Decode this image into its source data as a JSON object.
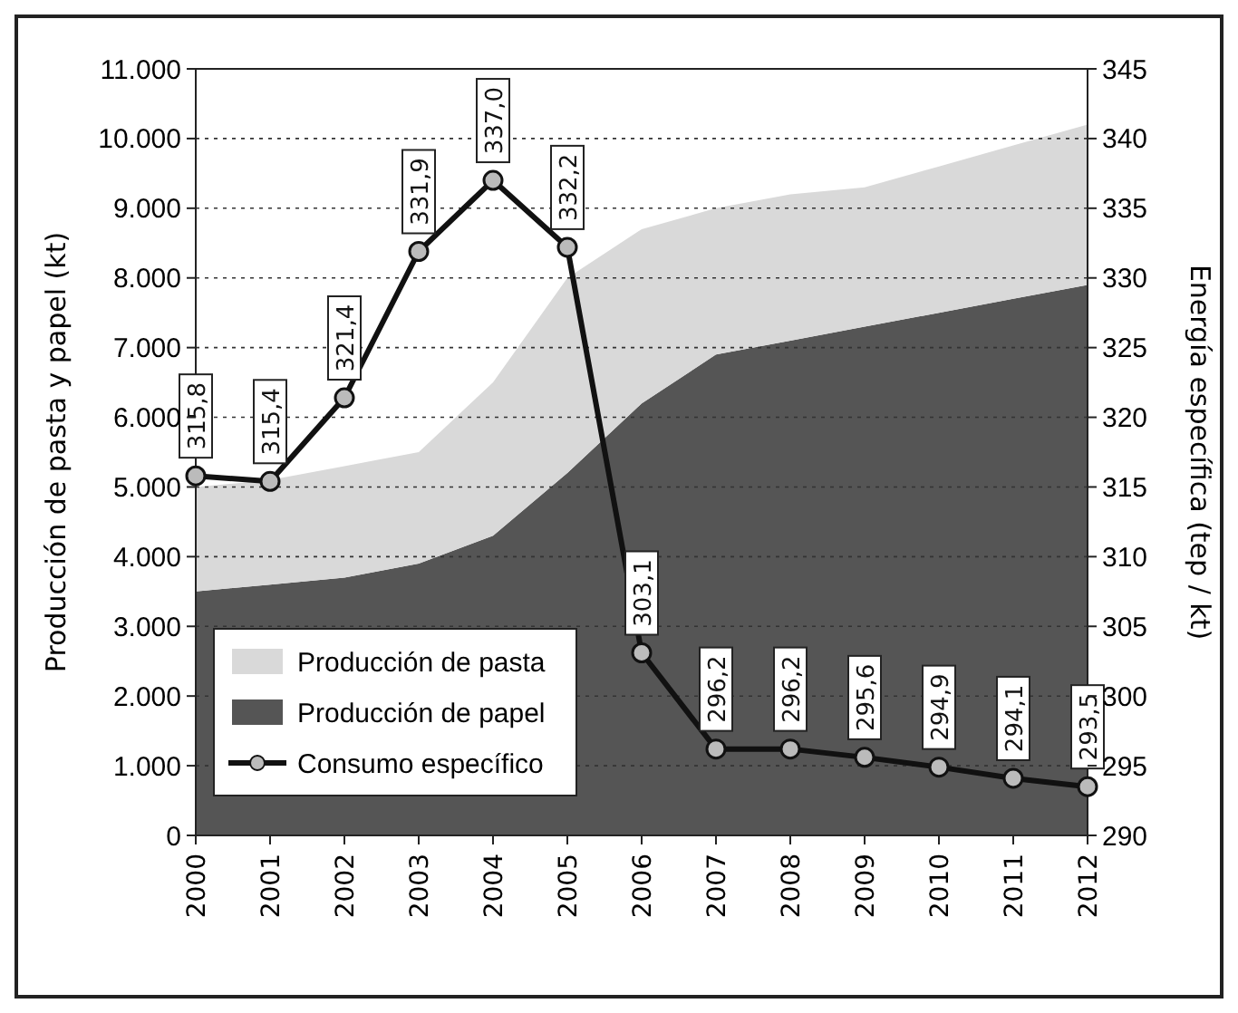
{
  "chart_data": {
    "type": "area",
    "stacked": true,
    "categories": [
      "2000",
      "2001",
      "2002",
      "2003",
      "2004",
      "2005",
      "2006",
      "2007",
      "2008",
      "2009",
      "2010",
      "2011",
      "2012"
    ],
    "series": [
      {
        "name": "Producción de papel",
        "color": "#555555",
        "values": [
          3500,
          3600,
          3700,
          3900,
          4300,
          5200,
          6200,
          6900,
          7100,
          7300,
          7500,
          7700,
          7900
        ]
      },
      {
        "name": "Producción de pasta",
        "color": "#d9d9d9",
        "values": [
          1500,
          1500,
          1600,
          1600,
          2200,
          2800,
          2500,
          2100,
          2100,
          2000,
          2100,
          2200,
          2300
        ]
      },
      {
        "name": "Consumo específico",
        "type": "line",
        "axis": "y2",
        "color": "#111111",
        "marker": "circle",
        "data_labels": true,
        "values": [
          315.8,
          315.4,
          321.4,
          331.9,
          337.0,
          332.2,
          303.1,
          296.2,
          296.2,
          295.6,
          294.9,
          294.1,
          293.5
        ],
        "value_labels": [
          "315,8",
          "315,4",
          "321,4",
          "331,9",
          "337,0",
          "332,2",
          "303,1",
          "296,2",
          "296,2",
          "295,6",
          "294,9",
          "294,1",
          "293,5"
        ]
      }
    ],
    "ylabel": "Producción de pasta y papel (kt)",
    "y2label": "Energía específica (tep / kt)",
    "ylim": [
      0,
      11000
    ],
    "yticks": [
      {
        "value": 0,
        "label": "0"
      },
      {
        "value": 1000,
        "label": "1.000"
      },
      {
        "value": 2000,
        "label": "2.000"
      },
      {
        "value": 3000,
        "label": "3.000"
      },
      {
        "value": 4000,
        "label": "4.000"
      },
      {
        "value": 5000,
        "label": "5.000"
      },
      {
        "value": 6000,
        "label": "6.000"
      },
      {
        "value": 7000,
        "label": "7.000"
      },
      {
        "value": 8000,
        "label": "8.000"
      },
      {
        "value": 9000,
        "label": "9.000"
      },
      {
        "value": 10000,
        "label": "10.000"
      },
      {
        "value": 11000,
        "label": "11.000"
      }
    ],
    "y2lim": [
      290,
      345
    ],
    "y2ticks": [
      290,
      295,
      300,
      305,
      310,
      315,
      320,
      325,
      330,
      335,
      340,
      345
    ],
    "grid": "y",
    "legend": "bottom left"
  }
}
